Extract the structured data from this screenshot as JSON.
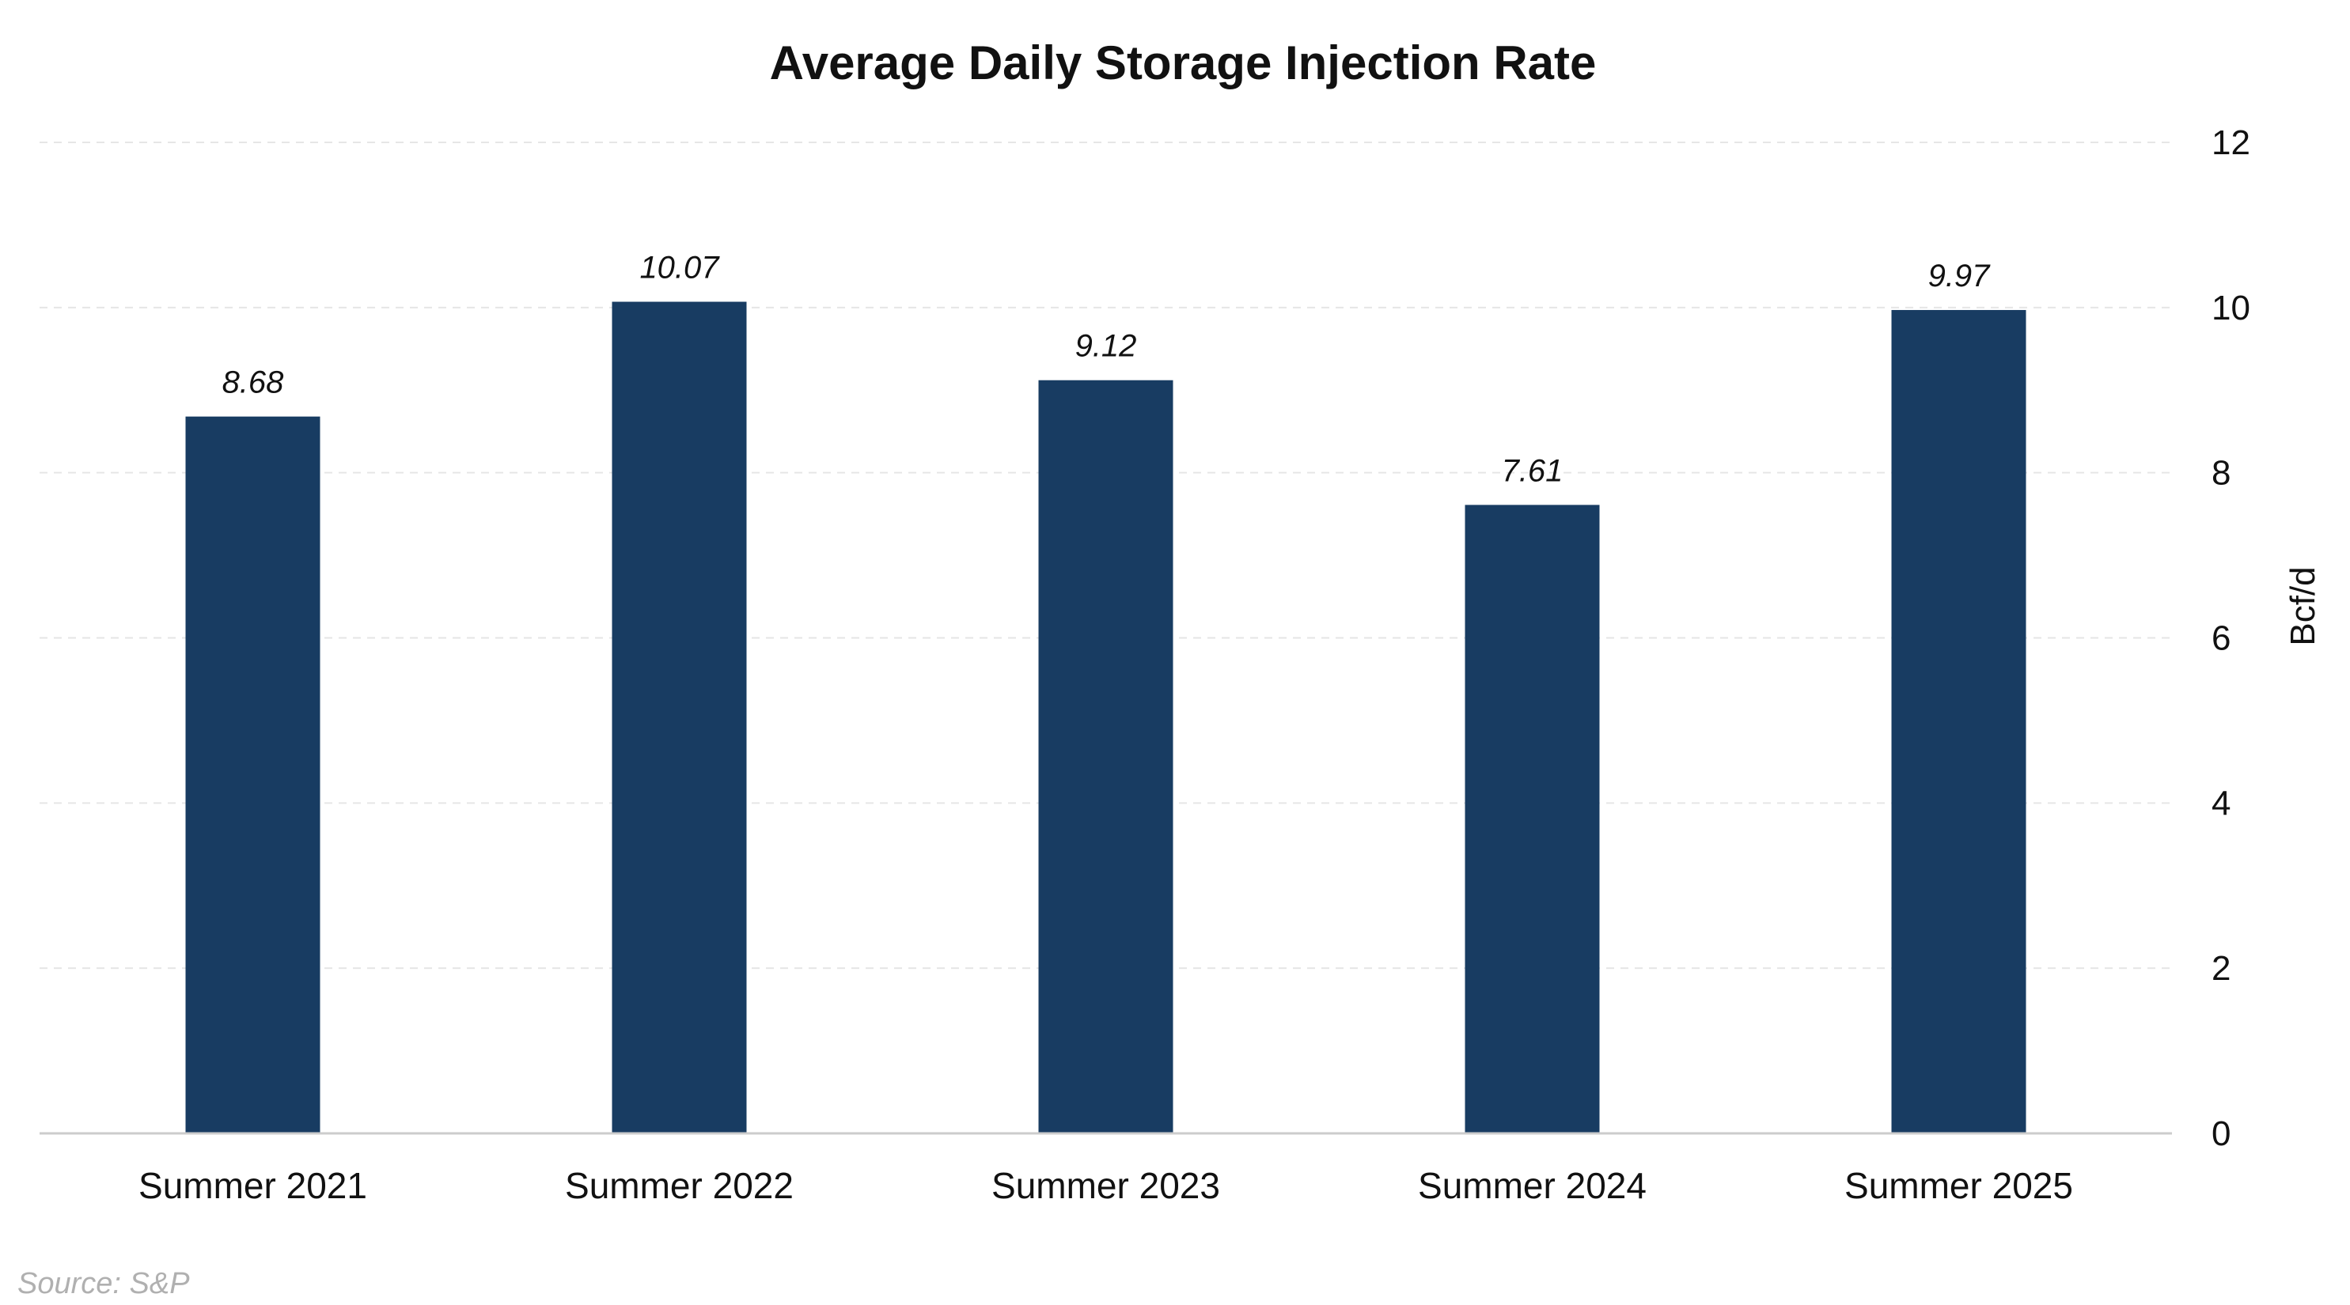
{
  "chart_data": {
    "type": "bar",
    "title": "Average Daily Storage Injection Rate",
    "categories": [
      "Summer 2021",
      "Summer 2022",
      "Summer 2023",
      "Summer 2024",
      "Summer 2025"
    ],
    "values": [
      8.68,
      10.07,
      9.12,
      7.61,
      9.97
    ],
    "data_labels": [
      "8.68",
      "10.07",
      "9.12",
      "7.61",
      "9.97"
    ],
    "ylabel": "Bcf/d",
    "y_axis_side": "right",
    "ylim": [
      0,
      12
    ],
    "yticks": [
      0,
      2,
      4,
      6,
      8,
      10,
      12
    ],
    "ytick_labels": [
      "0",
      "2",
      "4",
      "6",
      "8",
      "10",
      "12"
    ],
    "grid": true,
    "bar_color": "#183c62",
    "source": "Source: S&P"
  }
}
